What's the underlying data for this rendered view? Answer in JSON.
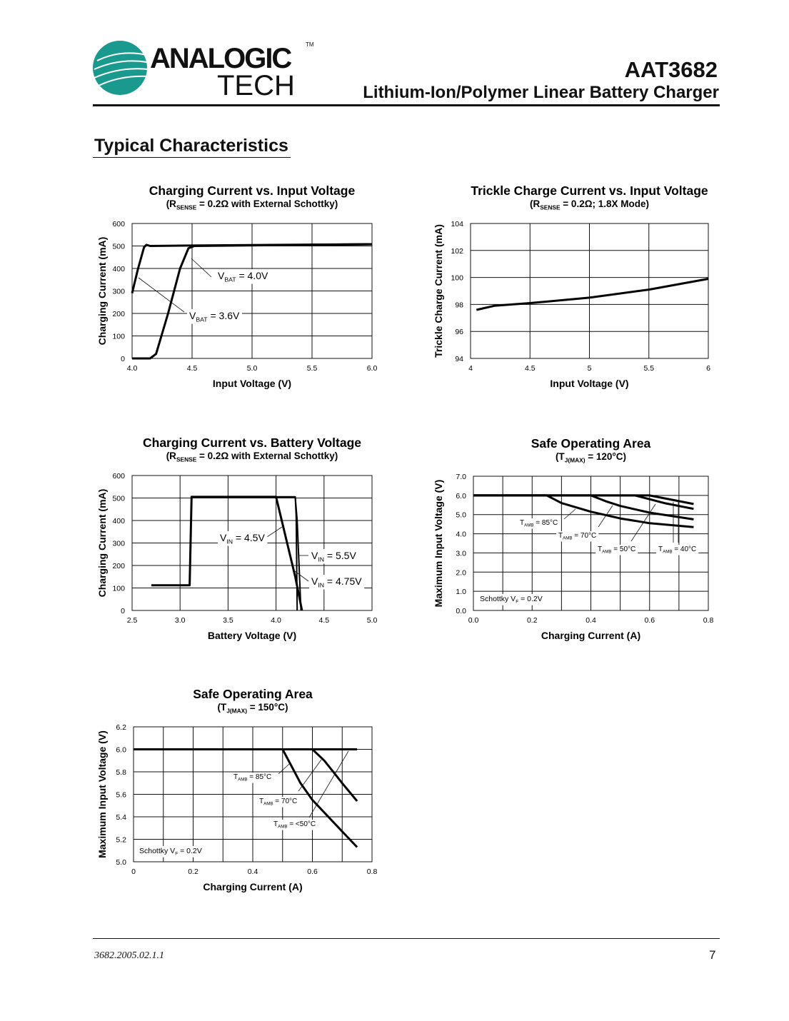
{
  "header": {
    "logo": {
      "text_top": "ANALOGIC",
      "text_bottom": "TECH",
      "tm": "TM",
      "color": "#1a9a8e"
    },
    "part_number": "AAT3682",
    "document_title": "Lithium-Ion/Polymer Linear Battery Charger"
  },
  "section_title": "Typical Characteristics",
  "footer": {
    "doc_number": "3682.2005.02.1.1",
    "page_number": "7"
  },
  "chart_data": [
    {
      "type": "line",
      "title": "Charging Current vs. Input Voltage",
      "subtitle": {
        "pre": "(R",
        "sub": "SENSE",
        "post": " = 0.2Ω with External Schottky)"
      },
      "xlabel": "Input Voltage (V)",
      "ylabel": "Charging Current (mA)",
      "xlim": [
        4.0,
        6.0
      ],
      "ylim": [
        0,
        600
      ],
      "xticks": [
        "4.0",
        "4.5",
        "5.0",
        "5.5",
        "6.0"
      ],
      "xtick_values": [
        4.0,
        4.5,
        5.0,
        5.5,
        6.0
      ],
      "yticks": [
        "0",
        "100",
        "200",
        "300",
        "400",
        "500",
        "600"
      ],
      "ytick_values": [
        0,
        100,
        200,
        300,
        400,
        500,
        600
      ],
      "xgrid": [
        4.5,
        5.0,
        5.5
      ],
      "ygrid": [
        100,
        200,
        300,
        400,
        500
      ],
      "series": [
        {
          "name": {
            "pre": "V",
            "sub": "BAT",
            "post": " = 3.6V"
          },
          "x": [
            4.0,
            4.05,
            4.1,
            4.12,
            4.15,
            4.5,
            6.0
          ],
          "y": [
            290,
            400,
            495,
            505,
            500,
            502,
            508
          ]
        },
        {
          "name": {
            "pre": "V",
            "sub": "BAT",
            "post": " = 4.0V"
          },
          "x": [
            4.0,
            4.15,
            4.2,
            4.3,
            4.4,
            4.47,
            4.52,
            6.0
          ],
          "y": [
            0,
            0,
            20,
            200,
            400,
            490,
            500,
            508
          ]
        }
      ]
    },
    {
      "type": "line",
      "title": "Trickle Charge Current vs. Input Voltage",
      "subtitle": {
        "pre": "(R",
        "sub": "SENSE",
        "post": " = 0.2Ω; 1.8X Mode)"
      },
      "xlabel": "Input Voltage (V)",
      "ylabel": "Trickle Charge Current (mA)",
      "xlim": [
        4,
        6
      ],
      "ylim": [
        94,
        104
      ],
      "xticks": [
        "4",
        "4.5",
        "5",
        "5.5",
        "6"
      ],
      "xtick_values": [
        4,
        4.5,
        5,
        5.5,
        6
      ],
      "yticks": [
        "94",
        "96",
        "98",
        "100",
        "102",
        "104"
      ],
      "ytick_values": [
        94,
        96,
        98,
        100,
        102,
        104
      ],
      "xgrid": [
        4.5,
        5,
        5.5
      ],
      "ygrid": [
        96,
        98,
        100,
        102
      ],
      "series": [
        {
          "x": [
            4.05,
            4.2,
            4.5,
            5.0,
            5.5,
            6.0
          ],
          "y": [
            97.6,
            97.9,
            98.1,
            98.5,
            99.1,
            99.9
          ]
        }
      ]
    },
    {
      "type": "line",
      "title": "Charging Current vs. Battery Voltage",
      "subtitle": {
        "pre": "(R",
        "sub": "SENSE",
        "post": " = 0.2Ω with External Schottky)"
      },
      "xlabel": "Battery Voltage (V)",
      "ylabel": "Charging Current (mA)",
      "xlim": [
        2.5,
        5.0
      ],
      "ylim": [
        0,
        600
      ],
      "xticks": [
        "2.5",
        "3.0",
        "3.5",
        "4.0",
        "4.5",
        "5.0"
      ],
      "xtick_values": [
        2.5,
        3.0,
        3.5,
        4.0,
        4.5,
        5.0
      ],
      "yticks": [
        "0",
        "100",
        "200",
        "300",
        "400",
        "500",
        "600"
      ],
      "ytick_values": [
        0,
        100,
        200,
        300,
        400,
        500,
        600
      ],
      "xgrid": [
        3.0,
        3.5,
        4.0,
        4.5
      ],
      "ygrid": [
        100,
        200,
        300,
        400,
        500
      ],
      "series": [
        {
          "name": {
            "pre": "V",
            "sub": "IN",
            "post": " = 4.5V"
          },
          "x": [
            2.7,
            3.1,
            3.12,
            4.0,
            4.2,
            4.27
          ],
          "y": [
            112,
            112,
            505,
            505,
            150,
            0
          ]
        },
        {
          "name": {
            "pre": "V",
            "sub": "IN",
            "post": " = 5.5V"
          },
          "x": [
            3.12,
            4.2,
            4.21,
            4.22
          ],
          "y": [
            505,
            505,
            420,
            0
          ]
        },
        {
          "name": {
            "pre": "V",
            "sub": "IN",
            "post": " = 4.75V"
          },
          "x": [
            3.12,
            4.2,
            4.22,
            4.26
          ],
          "y": [
            505,
            505,
            400,
            0
          ]
        }
      ]
    },
    {
      "type": "line",
      "title": "Safe Operating Area",
      "subtitle": {
        "pre": "(T",
        "sub": "J(MAX)",
        "post": " = 120°C)"
      },
      "xlabel": "Charging Current (A)",
      "ylabel": "Maximum Input Voltage (V)",
      "xlim": [
        0.0,
        0.8
      ],
      "ylim": [
        0.0,
        7.0
      ],
      "xticks": [
        "0.0",
        "0.2",
        "0.4",
        "0.6",
        "0.8"
      ],
      "xtick_values": [
        0.0,
        0.2,
        0.4,
        0.6,
        0.8
      ],
      "yticks": [
        "0.0",
        "1.0",
        "2.0",
        "3.0",
        "4.0",
        "5.0",
        "6.0",
        "7.0"
      ],
      "ytick_values": [
        0,
        1,
        2,
        3,
        4,
        5,
        6,
        7
      ],
      "xgrid": [
        0.1,
        0.2,
        0.3,
        0.4,
        0.5,
        0.6,
        0.7
      ],
      "ygrid": [
        1,
        2,
        3,
        4,
        5,
        6
      ],
      "note": {
        "pre": "Schottky V",
        "sub": "F",
        "post": " = 0.2V"
      },
      "series": [
        {
          "name": {
            "pre": "T",
            "sub": "AMB",
            "post": " = 85°C"
          },
          "x": [
            0.0,
            0.25,
            0.3,
            0.4,
            0.5,
            0.6,
            0.75
          ],
          "y": [
            6.0,
            6.0,
            5.6,
            5.15,
            4.8,
            4.55,
            4.35
          ]
        },
        {
          "name": {
            "pre": "T",
            "sub": "AMB",
            "post": " = 70°C"
          },
          "x": [
            0.0,
            0.4,
            0.45,
            0.5,
            0.6,
            0.75
          ],
          "y": [
            6.0,
            6.0,
            5.7,
            5.45,
            5.1,
            4.75
          ]
        },
        {
          "name": {
            "pre": "T",
            "sub": "AMB",
            "post": " = 50°C"
          },
          "x": [
            0.0,
            0.55,
            0.6,
            0.65,
            0.75
          ],
          "y": [
            6.0,
            6.0,
            5.8,
            5.6,
            5.3
          ]
        },
        {
          "name": {
            "pre": "T",
            "sub": "AMB",
            "post": " = 40°C"
          },
          "x": [
            0.0,
            0.6,
            0.65,
            0.7,
            0.75
          ],
          "y": [
            6.0,
            6.0,
            5.85,
            5.7,
            5.55
          ]
        }
      ]
    },
    {
      "type": "line",
      "title": "Safe Operating Area",
      "subtitle": {
        "pre": "(T",
        "sub": "J(MAX)",
        "post": " = 150°C)"
      },
      "xlabel": "Charging Current (A)",
      "ylabel": "Maximum Input Voltage (V)",
      "xlim": [
        0,
        0.8
      ],
      "ylim": [
        5.0,
        6.2
      ],
      "xticks": [
        "0",
        "0.2",
        "0.4",
        "0.6",
        "0.8"
      ],
      "xtick_values": [
        0,
        0.2,
        0.4,
        0.6,
        0.8
      ],
      "yticks": [
        "5.0",
        "5.2",
        "5.4",
        "5.6",
        "5.8",
        "6.0",
        "6.2"
      ],
      "ytick_values": [
        5.0,
        5.2,
        5.4,
        5.6,
        5.8,
        6.0,
        6.2
      ],
      "xgrid": [
        0.1,
        0.2,
        0.3,
        0.4,
        0.5,
        0.6,
        0.7
      ],
      "ygrid": [
        5.2,
        5.4,
        5.6,
        5.8,
        6.0
      ],
      "note": {
        "pre": "Schottky V",
        "sub": "F",
        "post": " = 0.2V"
      },
      "series": [
        {
          "name": {
            "pre": "T",
            "sub": "AMB",
            "post": " = 85°C"
          },
          "x": [
            0.0,
            0.5,
            0.53,
            0.56,
            0.6,
            0.7,
            0.75
          ],
          "y": [
            6.0,
            6.0,
            5.85,
            5.7,
            5.55,
            5.27,
            5.13
          ]
        },
        {
          "name": {
            "pre": "T",
            "sub": "AMB",
            "post": " = 70°C"
          },
          "x": [
            0.0,
            0.6,
            0.64,
            0.67,
            0.7,
            0.75
          ],
          "y": [
            6.0,
            6.0,
            5.9,
            5.8,
            5.7,
            5.54
          ]
        },
        {
          "name": {
            "pre": "T",
            "sub": "AMB",
            "post": " = <50°C"
          },
          "x": [
            0.0,
            0.75
          ],
          "y": [
            6.0,
            6.0
          ]
        }
      ]
    }
  ]
}
